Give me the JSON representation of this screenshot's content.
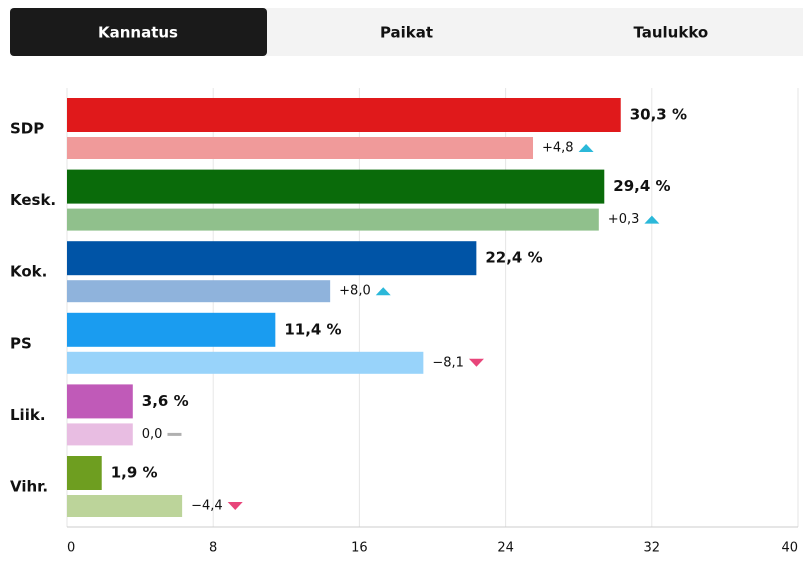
{
  "tabs": [
    "Kannatus",
    "Paikat",
    "Taulukko"
  ],
  "active_tab": 0,
  "chart_data": {
    "type": "bar",
    "orientation": "horizontal",
    "categories": [
      "SDP",
      "Kesk.",
      "Kok.",
      "PS",
      "Liik.",
      "Vihr."
    ],
    "series": [
      {
        "colors": [
          "#e0191b",
          "#0a6b0a",
          "#0054a6",
          "#1a9cf0",
          "#c05ab8",
          "#6e9e20"
        ],
        "values": [
          30.3,
          29.4,
          22.4,
          11.4,
          3.6,
          1.9
        ],
        "value_labels": [
          "30,3 %",
          "29,4 %",
          "22,4 %",
          "11,4 %",
          "3,6 %",
          "1,9 %"
        ]
      },
      {
        "colors": [
          "#f09a9a",
          "#90c08c",
          "#8fb3dc",
          "#98d3fa",
          "#e8bde2",
          "#bcd49a"
        ],
        "values": [
          25.5,
          29.1,
          14.4,
          19.5,
          3.6,
          6.3
        ]
      }
    ],
    "changes": [
      4.8,
      0.3,
      8.0,
      -8.1,
      0,
      -4.4
    ],
    "change_labels": [
      "+4,8",
      "+0,3",
      "+8,0",
      "−8,1",
      "0,0",
      "−4,4"
    ],
    "change_colors": {
      "up": "#2bb8d9",
      "down": "#e8457a",
      "none": "#b0b0b0"
    },
    "xlim": [
      0,
      40
    ],
    "xticks": [
      0,
      8,
      16,
      24,
      32,
      40
    ],
    "grid": true
  }
}
